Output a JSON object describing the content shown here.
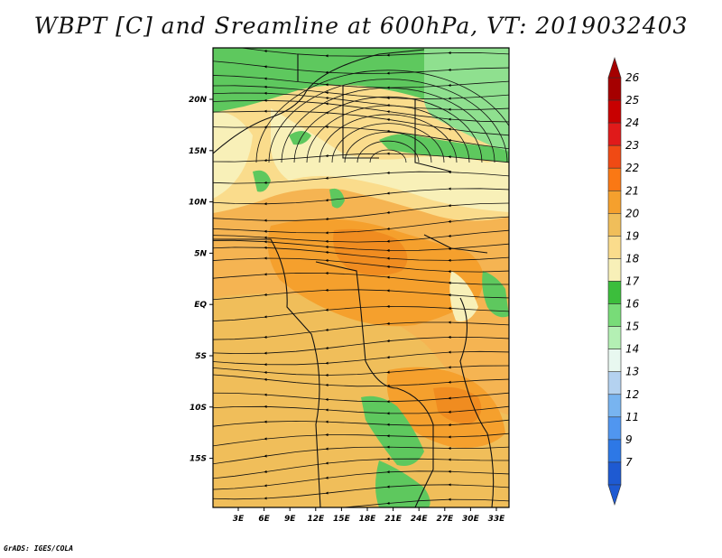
{
  "title": "WBPT [C] and Sreamline at 600hPa, VT: 2019032403",
  "credit": "GrADS: IGES/COLA",
  "map": {
    "lat_labels": [
      "20N",
      "15N",
      "10N",
      "5N",
      "EQ",
      "5S",
      "10S",
      "15S"
    ],
    "lon_labels": [
      "3E",
      "6E",
      "9E",
      "12E",
      "15E",
      "18E",
      "21E",
      "24E",
      "27E",
      "30E",
      "33E"
    ]
  },
  "colorbar": {
    "labels": [
      "26",
      "25",
      "24",
      "23",
      "22",
      "21",
      "20",
      "19",
      "18",
      "17",
      "16",
      "15",
      "14",
      "13",
      "12",
      "11",
      "9",
      "7"
    ],
    "colors": [
      "#a50000",
      "#c80000",
      "#e01a1a",
      "#f04a14",
      "#fa7814",
      "#f5a02d",
      "#f0be5a",
      "#fadc8c",
      "#f8f0b8",
      "#3cbe3c",
      "#78dc78",
      "#b4f0b4",
      "#e8f8f0",
      "#b4d2f0",
      "#78b4f0",
      "#5096f0",
      "#2d78e6",
      "#1e5ad2"
    ]
  }
}
